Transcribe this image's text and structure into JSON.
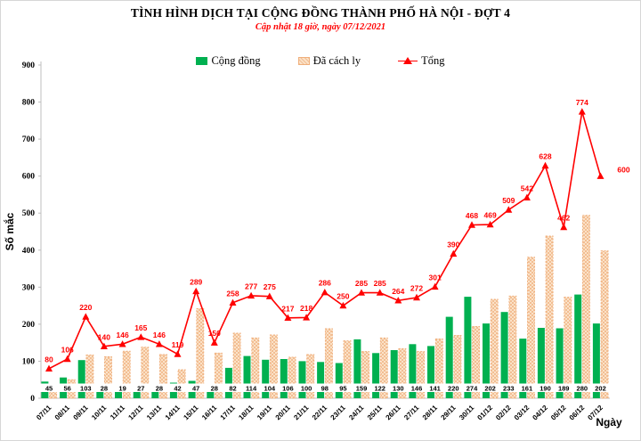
{
  "header": {
    "title": "TÌNH HÌNH DỊCH TẠI CỘNG ĐỒNG THÀNH PHỐ HÀ NỘI - ĐỢT 4",
    "subtitle": "Cập nhật 18 giờ, ngày 07/12/2021"
  },
  "colors": {
    "community_green": "#00B050",
    "quarantine_fill": "#FBE2C8",
    "quarantine_dots": "#F2BE93",
    "quarantine_border": "#F0AF7B",
    "total_red": "#FF0000",
    "axis_gray": "#BFBFBF"
  },
  "chart_data": {
    "type": "bar",
    "title": "TÌNH HÌNH DỊCH TẠI CỘNG ĐỒNG THÀNH PHỐ HÀ NỘI - ĐỢT 4",
    "subtitle": "Cập nhật 18 giờ, ngày 07/12/2021",
    "categories": [
      "07/11",
      "08/11",
      "09/11",
      "10/11",
      "11/11",
      "12/11",
      "13/11",
      "14/11",
      "15/11",
      "16/11",
      "17/11",
      "18/11",
      "19/11",
      "20/11",
      "21/11",
      "22/11",
      "23/11",
      "24/11",
      "25/11",
      "26/11",
      "27/11",
      "28/11",
      "29/11",
      "30/11",
      "01/12",
      "02/12",
      "03/12",
      "04/12",
      "05/12",
      "06/12",
      "07/12"
    ],
    "series": [
      {
        "name": "Cộng đồng",
        "type": "bar",
        "color": "#00B050",
        "values": [
          45,
          56,
          103,
          28,
          19,
          27,
          28,
          42,
          47,
          28,
          82,
          114,
          104,
          106,
          100,
          98,
          95,
          159,
          122,
          130,
          146,
          141,
          220,
          274,
          202,
          233,
          161,
          190,
          189,
          280,
          202
        ],
        "labels_shown": true
      },
      {
        "name": "Đã cách ly",
        "type": "bar",
        "color": "#FBE2C8",
        "pattern": "dot-checker",
        "values": [
          35,
          50,
          117,
          112,
          127,
          138,
          118,
          77,
          242,
          122,
          176,
          163,
          171,
          111,
          118,
          188,
          155,
          126,
          163,
          134,
          126,
          160,
          170,
          194,
          267,
          276,
          381,
          438,
          273,
          494,
          398
        ],
        "labels_shown": false
      },
      {
        "name": "Tổng",
        "type": "line",
        "color": "#FF0000",
        "marker": "triangle",
        "values": [
          80,
          106,
          220,
          140,
          146,
          165,
          146,
          119,
          289,
          150,
          258,
          277,
          275,
          217,
          218,
          286,
          250,
          285,
          285,
          264,
          272,
          301,
          390,
          468,
          469,
          509,
          542,
          628,
          462,
          774,
          600
        ],
        "labels_shown": true
      }
    ],
    "ylabel": "Số mắc",
    "xlabel": "Ngày",
    "ylim": [
      0,
      900
    ],
    "ytick_step": 100,
    "grid": false,
    "legend_position": "top"
  }
}
